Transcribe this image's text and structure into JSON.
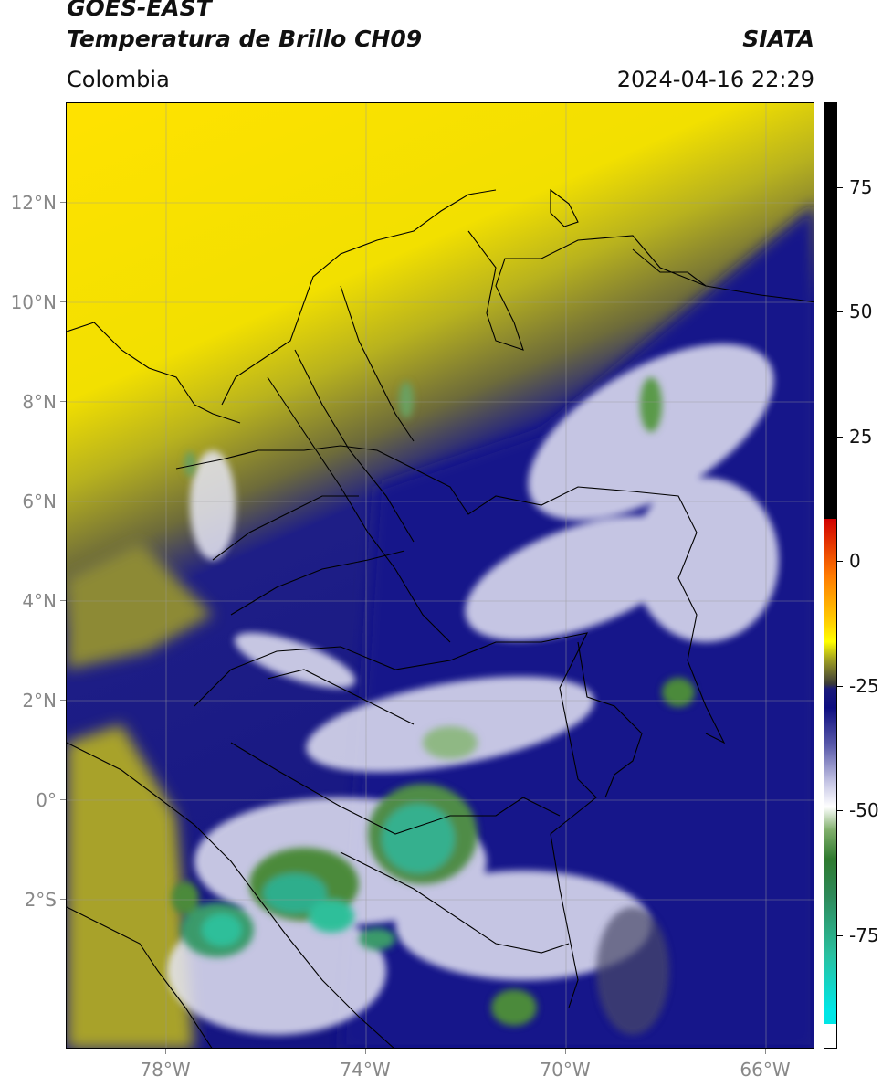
{
  "header": {
    "line1": "GOES-EAST",
    "line2": "Temperatura de Brillo CH09",
    "org": "SIATA",
    "region": "Colombia",
    "datetime": "2024-04-16 22:29"
  },
  "map": {
    "lon_range": [
      -80,
      -65
    ],
    "lat_range": [
      -5,
      14
    ],
    "lat_ticks": [
      "12°N",
      "10°N",
      "8°N",
      "6°N",
      "4°N",
      "2°N",
      "0°",
      "2°S"
    ],
    "lon_ticks": [
      "78°W",
      "74°W",
      "70°W",
      "66°W"
    ],
    "colors": {
      "warm_yellow": "#ffe500",
      "olive": "#a9a323",
      "deep_blue": "#141482",
      "cold_white": "#ffffff",
      "green": "#4b8c3c",
      "teal": "#2fbf9a"
    }
  },
  "colorbar": {
    "ticks": [
      "75",
      "50",
      "25",
      "0",
      "-25",
      "-50",
      "-75"
    ]
  }
}
